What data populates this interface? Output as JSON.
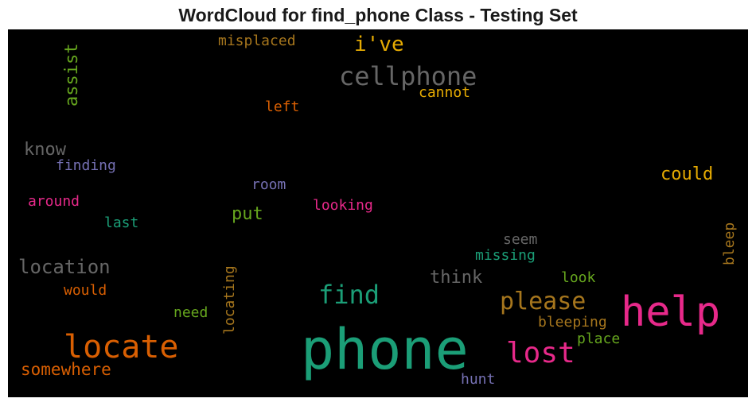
{
  "chart_data": {
    "type": "wordcloud",
    "title": "WordCloud for find_phone Class - Testing Set",
    "background": "#000000",
    "words": [
      {
        "text": "phone",
        "color": "#1b9e77",
        "rotated": false
      },
      {
        "text": "help",
        "color": "#e7298a",
        "rotated": false
      },
      {
        "text": "locate",
        "color": "#d95f02",
        "rotated": false
      },
      {
        "text": "lost",
        "color": "#e7298a",
        "rotated": false
      },
      {
        "text": "please",
        "color": "#a6761d",
        "rotated": false
      },
      {
        "text": "find",
        "color": "#1b9e77",
        "rotated": false
      },
      {
        "text": "cellphone",
        "color": "#666666",
        "rotated": false
      },
      {
        "text": "i've",
        "color": "#e6ab02",
        "rotated": false
      },
      {
        "text": "location",
        "color": "#666666",
        "rotated": false
      },
      {
        "text": "think",
        "color": "#666666",
        "rotated": false
      },
      {
        "text": "somewhere",
        "color": "#d95f02",
        "rotated": false
      },
      {
        "text": "could",
        "color": "#e6ab02",
        "rotated": false
      },
      {
        "text": "assist",
        "color": "#66a61e",
        "rotated": true
      },
      {
        "text": "know",
        "color": "#666666",
        "rotated": false
      },
      {
        "text": "put",
        "color": "#66a61e",
        "rotated": false
      },
      {
        "text": "misplaced",
        "color": "#a6761d",
        "rotated": false
      },
      {
        "text": "cannot",
        "color": "#e6ab02",
        "rotated": false
      },
      {
        "text": "left",
        "color": "#d95f02",
        "rotated": false
      },
      {
        "text": "finding",
        "color": "#7570b3",
        "rotated": false
      },
      {
        "text": "room",
        "color": "#7570b3",
        "rotated": false
      },
      {
        "text": "around",
        "color": "#e7298a",
        "rotated": false
      },
      {
        "text": "looking",
        "color": "#e7298a",
        "rotated": false
      },
      {
        "text": "last",
        "color": "#1b9e77",
        "rotated": false
      },
      {
        "text": "seem",
        "color": "#666666",
        "rotated": false
      },
      {
        "text": "missing",
        "color": "#1b9e77",
        "rotated": false
      },
      {
        "text": "bleep",
        "color": "#a6761d",
        "rotated": true
      },
      {
        "text": "would",
        "color": "#d95f02",
        "rotated": false
      },
      {
        "text": "look",
        "color": "#66a61e",
        "rotated": false
      },
      {
        "text": "need",
        "color": "#66a61e",
        "rotated": false
      },
      {
        "text": "locating",
        "color": "#a6761d",
        "rotated": true
      },
      {
        "text": "bleeping",
        "color": "#a6761d",
        "rotated": false
      },
      {
        "text": "place",
        "color": "#66a61e",
        "rotated": false
      },
      {
        "text": "hunt",
        "color": "#7570b3",
        "rotated": false
      }
    ]
  }
}
